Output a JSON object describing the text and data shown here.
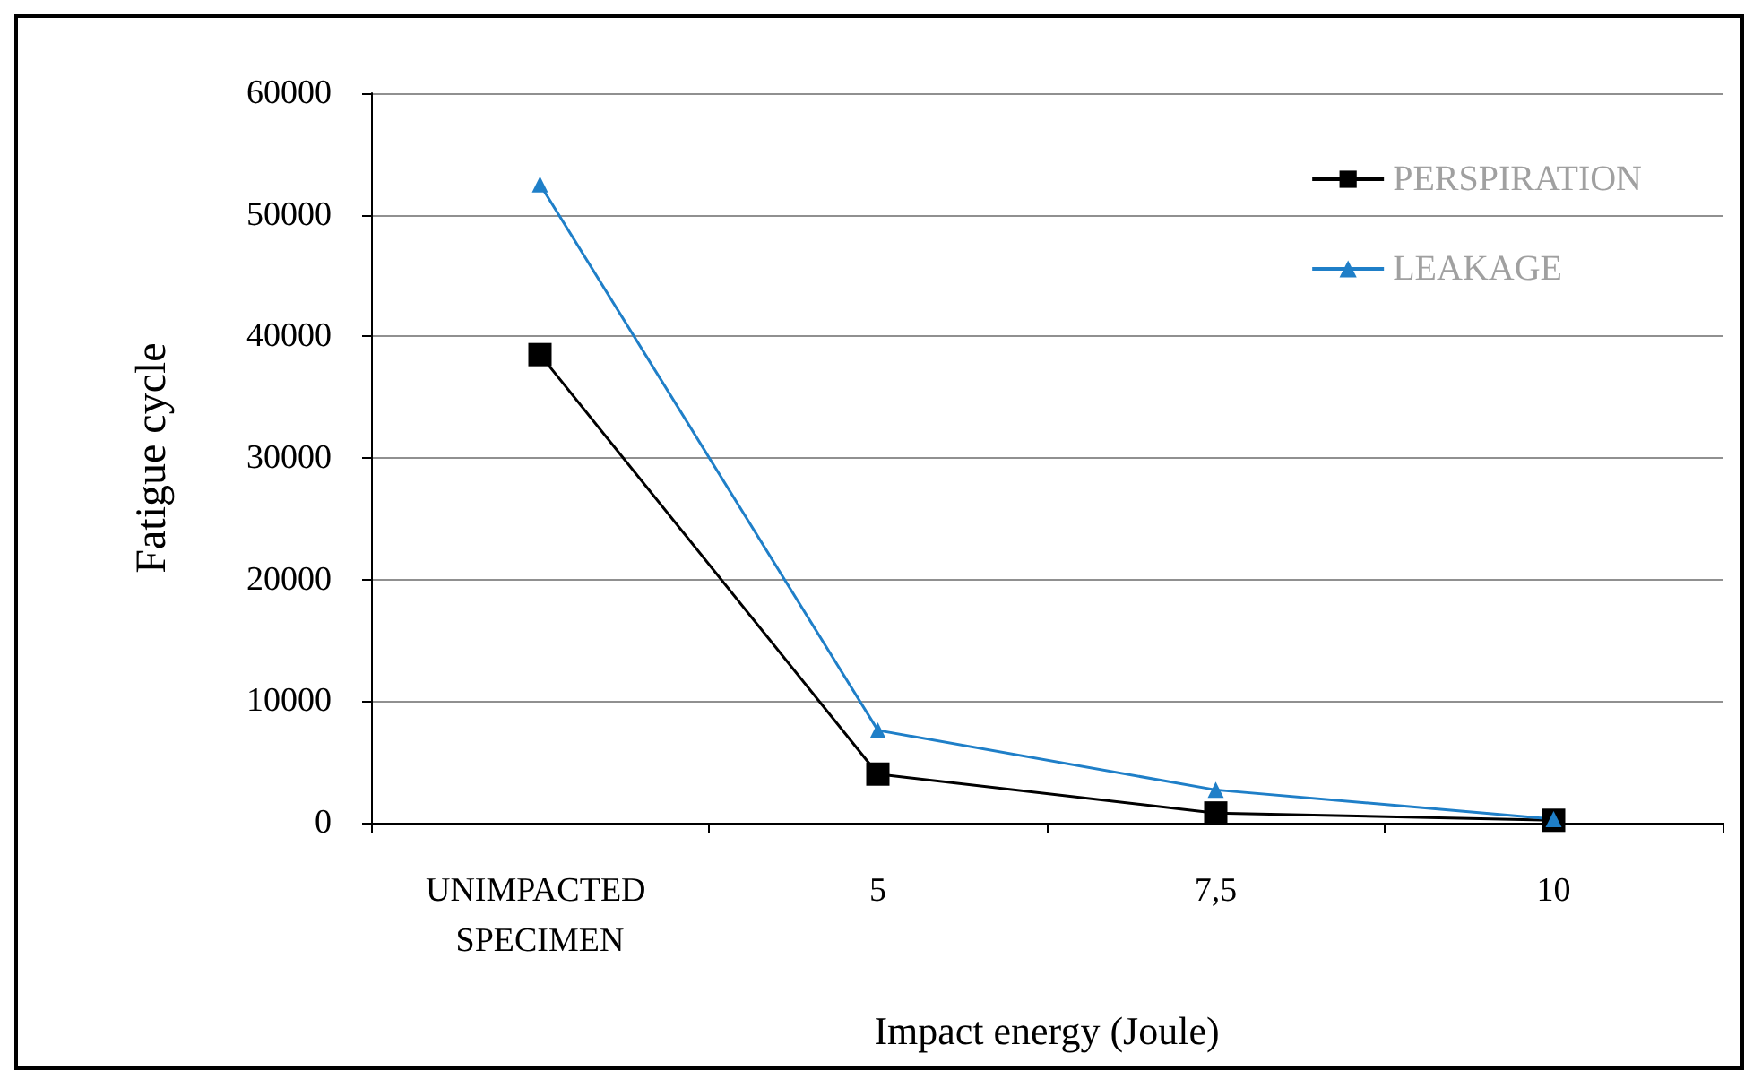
{
  "chart_data": {
    "type": "line",
    "xlabel": "Impact energy (Joule)",
    "ylabel": "Fatigue cycle",
    "categories": [
      "UNIMPACTED SPECIMEN",
      "5",
      "7,5",
      "10"
    ],
    "series": [
      {
        "name": "PERSPIRATION",
        "color": "#000000",
        "marker": "square",
        "values": [
          38500,
          4000,
          800,
          200
        ]
      },
      {
        "name": "LEAKAGE",
        "color": "#1f7fc8",
        "marker": "triangle",
        "values": [
          52500,
          7600,
          2700,
          300
        ]
      }
    ],
    "ylim": [
      0,
      60000
    ],
    "yticks": [
      0,
      10000,
      20000,
      30000,
      40000,
      50000,
      60000
    ],
    "grid": "y",
    "legend": "top right",
    "line_style": "solid"
  }
}
